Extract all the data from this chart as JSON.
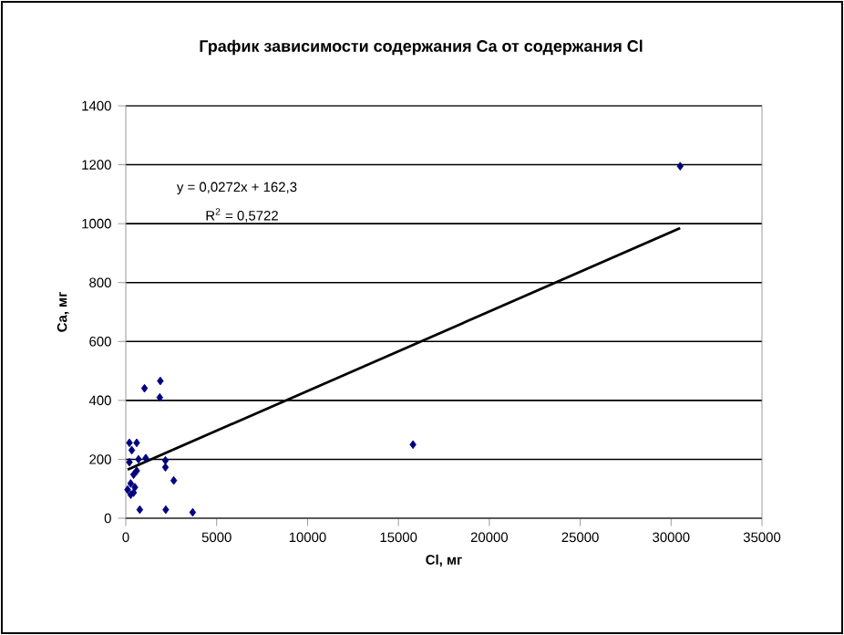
{
  "chart_data": {
    "type": "scatter",
    "title": "График зависимости содержания Ca от содержания Cl",
    "xlabel": "Cl, мг",
    "ylabel": "Ca, мг",
    "xlim": [
      0,
      35000
    ],
    "xticks": [
      0,
      5000,
      10000,
      15000,
      20000,
      25000,
      30000,
      35000
    ],
    "ylim": [
      0,
      1400
    ],
    "yticks": [
      0,
      200,
      400,
      600,
      800,
      1000,
      1200,
      1400
    ],
    "grid": "y",
    "marker": "diamond",
    "annotations": [
      "y = 0,0272x + 162,3",
      "R$^{2}$ = 0,5722"
    ],
    "series": [
      {
        "color": "#000080",
        "x": [
          30500,
          15800,
          1030,
          1900,
          1870,
          770,
          2200,
          3680,
          2640,
          2180,
          2180,
          1100,
          600,
          200,
          330,
          430,
          270,
          430,
          270,
          600,
          200,
          700,
          100,
          500
        ],
        "values": [
          1195,
          250,
          441,
          466,
          410,
          29,
          29,
          20,
          128,
          173,
          196,
          204,
          256,
          256,
          231,
          148,
          118,
          87,
          80,
          161,
          190,
          200,
          97,
          105
        ]
      },
      {
        "type": "line",
        "color": "#000000",
        "marker": "none",
        "x": [
          100,
          30500
        ],
        "values": [
          165,
          985
        ]
      }
    ]
  }
}
